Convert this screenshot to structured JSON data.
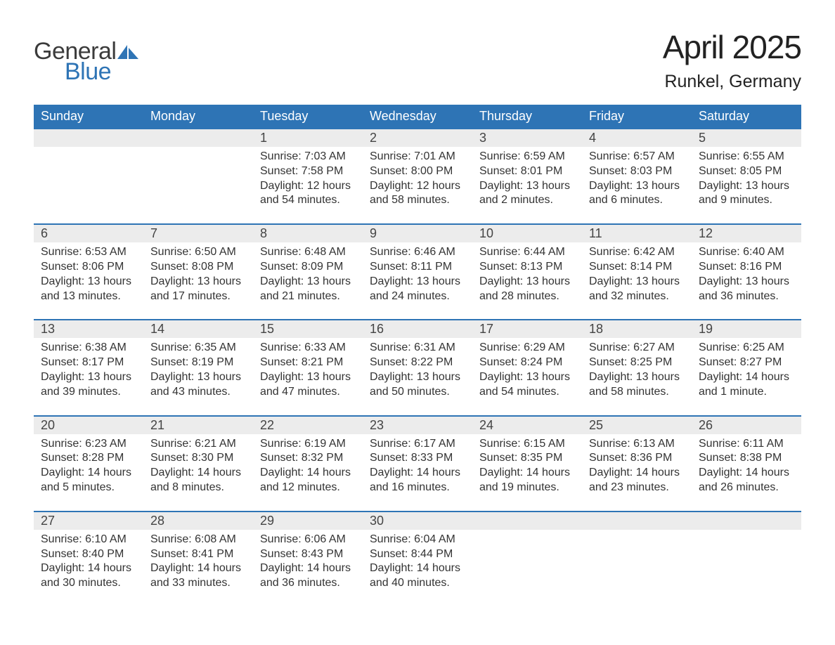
{
  "brand": {
    "word1": "General",
    "word2": "Blue",
    "icon_color": "#2e74b5"
  },
  "title": "April 2025",
  "location": "Runkel, Germany",
  "colors": {
    "header_bg": "#2e74b5",
    "header_text": "#ffffff",
    "daynum_bg": "#ececec",
    "row_border": "#2e74b5",
    "body_text": "#333333",
    "page_bg": "#ffffff"
  },
  "fonts": {
    "title_size": 46,
    "location_size": 25,
    "header_size": 18,
    "body_size": 16
  },
  "day_headers": [
    "Sunday",
    "Monday",
    "Tuesday",
    "Wednesday",
    "Thursday",
    "Friday",
    "Saturday"
  ],
  "weeks": [
    [
      null,
      null,
      {
        "n": "1",
        "sr": "Sunrise: 7:03 AM",
        "ss": "Sunset: 7:58 PM",
        "d1": "Daylight: 12 hours",
        "d2": "and 54 minutes."
      },
      {
        "n": "2",
        "sr": "Sunrise: 7:01 AM",
        "ss": "Sunset: 8:00 PM",
        "d1": "Daylight: 12 hours",
        "d2": "and 58 minutes."
      },
      {
        "n": "3",
        "sr": "Sunrise: 6:59 AM",
        "ss": "Sunset: 8:01 PM",
        "d1": "Daylight: 13 hours",
        "d2": "and 2 minutes."
      },
      {
        "n": "4",
        "sr": "Sunrise: 6:57 AM",
        "ss": "Sunset: 8:03 PM",
        "d1": "Daylight: 13 hours",
        "d2": "and 6 minutes."
      },
      {
        "n": "5",
        "sr": "Sunrise: 6:55 AM",
        "ss": "Sunset: 8:05 PM",
        "d1": "Daylight: 13 hours",
        "d2": "and 9 minutes."
      }
    ],
    [
      {
        "n": "6",
        "sr": "Sunrise: 6:53 AM",
        "ss": "Sunset: 8:06 PM",
        "d1": "Daylight: 13 hours",
        "d2": "and 13 minutes."
      },
      {
        "n": "7",
        "sr": "Sunrise: 6:50 AM",
        "ss": "Sunset: 8:08 PM",
        "d1": "Daylight: 13 hours",
        "d2": "and 17 minutes."
      },
      {
        "n": "8",
        "sr": "Sunrise: 6:48 AM",
        "ss": "Sunset: 8:09 PM",
        "d1": "Daylight: 13 hours",
        "d2": "and 21 minutes."
      },
      {
        "n": "9",
        "sr": "Sunrise: 6:46 AM",
        "ss": "Sunset: 8:11 PM",
        "d1": "Daylight: 13 hours",
        "d2": "and 24 minutes."
      },
      {
        "n": "10",
        "sr": "Sunrise: 6:44 AM",
        "ss": "Sunset: 8:13 PM",
        "d1": "Daylight: 13 hours",
        "d2": "and 28 minutes."
      },
      {
        "n": "11",
        "sr": "Sunrise: 6:42 AM",
        "ss": "Sunset: 8:14 PM",
        "d1": "Daylight: 13 hours",
        "d2": "and 32 minutes."
      },
      {
        "n": "12",
        "sr": "Sunrise: 6:40 AM",
        "ss": "Sunset: 8:16 PM",
        "d1": "Daylight: 13 hours",
        "d2": "and 36 minutes."
      }
    ],
    [
      {
        "n": "13",
        "sr": "Sunrise: 6:38 AM",
        "ss": "Sunset: 8:17 PM",
        "d1": "Daylight: 13 hours",
        "d2": "and 39 minutes."
      },
      {
        "n": "14",
        "sr": "Sunrise: 6:35 AM",
        "ss": "Sunset: 8:19 PM",
        "d1": "Daylight: 13 hours",
        "d2": "and 43 minutes."
      },
      {
        "n": "15",
        "sr": "Sunrise: 6:33 AM",
        "ss": "Sunset: 8:21 PM",
        "d1": "Daylight: 13 hours",
        "d2": "and 47 minutes."
      },
      {
        "n": "16",
        "sr": "Sunrise: 6:31 AM",
        "ss": "Sunset: 8:22 PM",
        "d1": "Daylight: 13 hours",
        "d2": "and 50 minutes."
      },
      {
        "n": "17",
        "sr": "Sunrise: 6:29 AM",
        "ss": "Sunset: 8:24 PM",
        "d1": "Daylight: 13 hours",
        "d2": "and 54 minutes."
      },
      {
        "n": "18",
        "sr": "Sunrise: 6:27 AM",
        "ss": "Sunset: 8:25 PM",
        "d1": "Daylight: 13 hours",
        "d2": "and 58 minutes."
      },
      {
        "n": "19",
        "sr": "Sunrise: 6:25 AM",
        "ss": "Sunset: 8:27 PM",
        "d1": "Daylight: 14 hours",
        "d2": "and 1 minute."
      }
    ],
    [
      {
        "n": "20",
        "sr": "Sunrise: 6:23 AM",
        "ss": "Sunset: 8:28 PM",
        "d1": "Daylight: 14 hours",
        "d2": "and 5 minutes."
      },
      {
        "n": "21",
        "sr": "Sunrise: 6:21 AM",
        "ss": "Sunset: 8:30 PM",
        "d1": "Daylight: 14 hours",
        "d2": "and 8 minutes."
      },
      {
        "n": "22",
        "sr": "Sunrise: 6:19 AM",
        "ss": "Sunset: 8:32 PM",
        "d1": "Daylight: 14 hours",
        "d2": "and 12 minutes."
      },
      {
        "n": "23",
        "sr": "Sunrise: 6:17 AM",
        "ss": "Sunset: 8:33 PM",
        "d1": "Daylight: 14 hours",
        "d2": "and 16 minutes."
      },
      {
        "n": "24",
        "sr": "Sunrise: 6:15 AM",
        "ss": "Sunset: 8:35 PM",
        "d1": "Daylight: 14 hours",
        "d2": "and 19 minutes."
      },
      {
        "n": "25",
        "sr": "Sunrise: 6:13 AM",
        "ss": "Sunset: 8:36 PM",
        "d1": "Daylight: 14 hours",
        "d2": "and 23 minutes."
      },
      {
        "n": "26",
        "sr": "Sunrise: 6:11 AM",
        "ss": "Sunset: 8:38 PM",
        "d1": "Daylight: 14 hours",
        "d2": "and 26 minutes."
      }
    ],
    [
      {
        "n": "27",
        "sr": "Sunrise: 6:10 AM",
        "ss": "Sunset: 8:40 PM",
        "d1": "Daylight: 14 hours",
        "d2": "and 30 minutes."
      },
      {
        "n": "28",
        "sr": "Sunrise: 6:08 AM",
        "ss": "Sunset: 8:41 PM",
        "d1": "Daylight: 14 hours",
        "d2": "and 33 minutes."
      },
      {
        "n": "29",
        "sr": "Sunrise: 6:06 AM",
        "ss": "Sunset: 8:43 PM",
        "d1": "Daylight: 14 hours",
        "d2": "and 36 minutes."
      },
      {
        "n": "30",
        "sr": "Sunrise: 6:04 AM",
        "ss": "Sunset: 8:44 PM",
        "d1": "Daylight: 14 hours",
        "d2": "and 40 minutes."
      },
      null,
      null,
      null
    ]
  ]
}
